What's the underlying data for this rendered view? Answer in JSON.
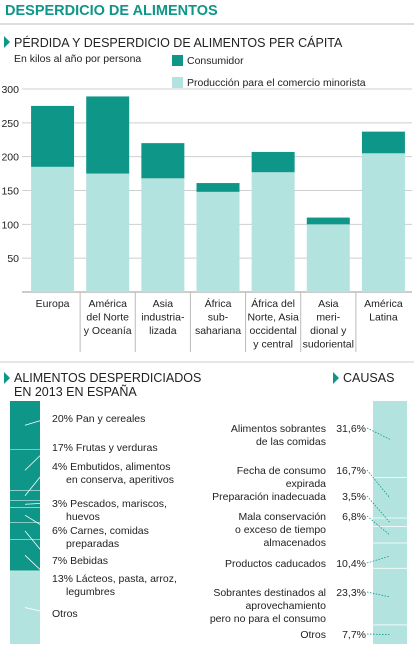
{
  "header": {
    "title": "DESPERDICIO DE ALIMENTOS"
  },
  "colors": {
    "dark": "#0e9688",
    "light": "#b2e3df",
    "title": "#0e9688",
    "grid": "#cfcfcf",
    "divider": "#cccccc"
  },
  "chart_data": [
    {
      "type": "bar",
      "stacked": true,
      "title": "PÉRDIDA Y DESPERDICIO DE ALIMENTOS PER CÁPITA",
      "subtitle": "En kilos al año por persona",
      "ylim": [
        0,
        300
      ],
      "yticks": [
        50,
        100,
        150,
        200,
        250,
        300
      ],
      "grid": true,
      "legend": "top-right",
      "categories": [
        [
          "Europa"
        ],
        [
          "América",
          "del Norte",
          "y Oceanía"
        ],
        [
          "Asia",
          "industria-",
          "lizada"
        ],
        [
          "África",
          "sub-",
          "sahariana"
        ],
        [
          "África del",
          "Norte, Asia",
          "occidental",
          "y central"
        ],
        [
          "Asia",
          "meri-",
          "dional y",
          "sudoriental"
        ],
        [
          "América",
          "Latina"
        ]
      ],
      "series": [
        {
          "name": "Producción para el comercio minorista",
          "values": [
            185,
            175,
            168,
            148,
            177,
            100,
            205
          ]
        },
        {
          "name": "Consumidor",
          "values": [
            90,
            114,
            52,
            13,
            30,
            10,
            32
          ]
        }
      ]
    },
    {
      "type": "bar",
      "stacked": true,
      "title": [
        "ALIMENTOS DESPERDICIADOS",
        "EN 2013 EN ESPAÑA"
      ],
      "segments": [
        {
          "label": [
            "20% Pan y cereales"
          ],
          "value": 20
        },
        {
          "label": [
            "17% Frutas y verduras"
          ],
          "value": 17
        },
        {
          "label": [
            "4% Embutidos, alimentos",
            "en conserva, aperitivos"
          ],
          "value": 4
        },
        {
          "label": [
            "3% Pescados, mariscos,",
            "huevos"
          ],
          "value": 3
        },
        {
          "label": [
            "6% Carnes, comidas",
            "preparadas"
          ],
          "value": 6
        },
        {
          "label": [
            "7% Bebidas"
          ],
          "value": 7
        },
        {
          "label": [
            "13% Lácteos, pasta, arroz,",
            "legumbres"
          ],
          "value": 13
        },
        {
          "label": [
            "Otros"
          ],
          "value": 30
        }
      ]
    },
    {
      "type": "bar",
      "stacked": true,
      "title": "CAUSAS",
      "segments": [
        {
          "label": [
            "Alimentos sobrantes",
            "de las comidas"
          ],
          "pct": "31,6%",
          "value": 31.6
        },
        {
          "label": [
            "Fecha de consumo",
            "expirada"
          ],
          "pct": "16,7%",
          "value": 16.7
        },
        {
          "label": [
            "Preparación inadecuada"
          ],
          "pct": "3,5%",
          "value": 3.5
        },
        {
          "label": [
            "Mala conservación",
            "o exceso de tiempo",
            "almacenados"
          ],
          "pct": "6,8%",
          "value": 6.8
        },
        {
          "label": [
            "Productos caducados"
          ],
          "pct": "10,4%",
          "value": 10.4
        },
        {
          "label": [
            "Sobrantes destinados al",
            "aprovechamiento",
            "pero no para el consumo"
          ],
          "pct": "23,3%",
          "value": 23.3
        },
        {
          "label": [
            "Otros"
          ],
          "pct": "7,7%",
          "value": 7.7
        }
      ]
    }
  ]
}
